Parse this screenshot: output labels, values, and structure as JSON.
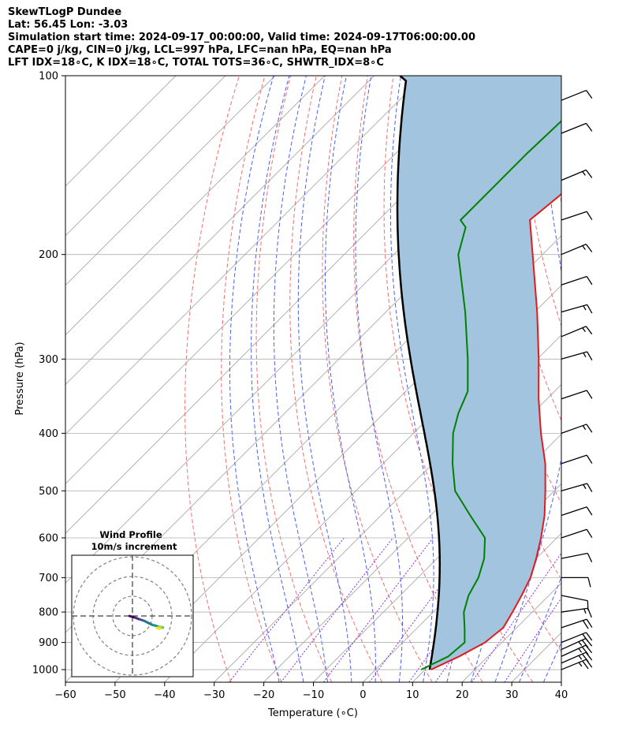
{
  "header": {
    "line1": "SkewTLogP Dundee",
    "line2": "Lat: 56.45   Lon: -3.03",
    "line3": "Simulation start time: 2024-09-17_00:00:00, Valid time: 2024-09-17T06:00:00.00",
    "line4": "CAPE=0 j/kg, CIN=0 j/kg, LCL=997 hPa, LFC=nan hPa, EQ=nan hPa",
    "line5": "LFT IDX=18∘C, K IDX=18∘C, TOTAL TOTS=36∘C, SHWTR_IDX=8∘C"
  },
  "colors": {
    "temperature": "#e41a1c",
    "dewpoint": "#008000",
    "parcel": "#000000",
    "cape_fill": "#a2c4de",
    "dry_adiabat": "#f07070",
    "moist_adiabat": "#4a5ff0",
    "mixing_ratio": "#8a2be2",
    "isotherm": "#a9a9a9"
  },
  "chart_data": [
    {
      "type": "line",
      "title": "",
      "xlabel": "Temperature (∘C)",
      "ylabel": "Pressure (hPa)",
      "xlim": [
        -60,
        40
      ],
      "ylim": [
        1050,
        100
      ],
      "y_scale": "log",
      "skew": true,
      "grid": true,
      "x_ticks": [
        -60,
        -50,
        -40,
        -30,
        -20,
        -10,
        0,
        10,
        20,
        30,
        40
      ],
      "y_ticks": [
        1000,
        900,
        800,
        700,
        600,
        500,
        400,
        300,
        200,
        100
      ],
      "series": [
        {
          "kind": "temperature",
          "points": [
            [
              1000,
              11.2
            ],
            [
              950,
              14.2
            ],
            [
              900,
              16.6
            ],
            [
              850,
              17.3
            ],
            [
              800,
              16.0
            ],
            [
              750,
              14.5
            ],
            [
              700,
              12.7
            ],
            [
              650,
              10.0
            ],
            [
              600,
              6.8
            ],
            [
              550,
              3.0
            ],
            [
              500,
              -1.8
            ],
            [
              450,
              -7.3
            ],
            [
              400,
              -14.3
            ],
            [
              350,
              -21.7
            ],
            [
              300,
              -29.7
            ],
            [
              250,
              -39.5
            ],
            [
              200,
              -52.0
            ],
            [
              175,
              -59.5
            ],
            [
              160,
              -58.5
            ],
            [
              150,
              -58.0
            ],
            [
              140,
              -59.5
            ],
            [
              125,
              -62.0
            ],
            [
              112,
              -65.0
            ],
            [
              100,
              -70.0
            ]
          ]
        },
        {
          "kind": "dewpoint",
          "points": [
            [
              1000,
              9.2
            ],
            [
              950,
              12.0
            ],
            [
              900,
              12.5
            ],
            [
              850,
              9.5
            ],
            [
              800,
              6.2
            ],
            [
              750,
              3.8
            ],
            [
              700,
              2.2
            ],
            [
              650,
              -0.5
            ],
            [
              600,
              -4.5
            ],
            [
              550,
              -12.0
            ],
            [
              500,
              -20.0
            ],
            [
              450,
              -26.0
            ],
            [
              400,
              -32.0
            ],
            [
              370,
              -35.0
            ],
            [
              340,
              -37.5
            ],
            [
              300,
              -44.0
            ],
            [
              250,
              -54.0
            ],
            [
              200,
              -67.0
            ],
            [
              180,
              -71.0
            ],
            [
              175,
              -73.5
            ],
            [
              150,
              -73.5
            ],
            [
              135,
              -73.5
            ],
            [
              115,
              -73.0
            ],
            [
              105,
              -74.5
            ],
            [
              100,
              -77.5
            ]
          ]
        }
      ],
      "parcel_profile": {
        "start": [
          1000,
          11.0
        ],
        "lcl_hpa": 997
      },
      "wind_barbs": [
        {
          "p": 1000,
          "u": -11.0,
          "v": -4.5
        },
        {
          "p": 975,
          "u": -11.5,
          "v": -5.0
        },
        {
          "p": 950,
          "u": -12.0,
          "v": -5.5
        },
        {
          "p": 925,
          "u": -11.0,
          "v": -5.0
        },
        {
          "p": 900,
          "u": -10.0,
          "v": -4.0
        },
        {
          "p": 850,
          "u": -9.0,
          "v": -3.0
        },
        {
          "p": 800,
          "u": -7.0,
          "v": -1.0
        },
        {
          "p": 750,
          "u": -5.0,
          "v": 1.0
        },
        {
          "p": 700,
          "u": -5.0,
          "v": 0.0
        },
        {
          "p": 650,
          "u": -5.0,
          "v": -1.0
        },
        {
          "p": 600,
          "u": -6.0,
          "v": -2.0
        },
        {
          "p": 550,
          "u": -6.0,
          "v": -2.0
        },
        {
          "p": 500,
          "u": -7.0,
          "v": -2.0
        },
        {
          "p": 450,
          "u": -6.0,
          "v": -2.0
        },
        {
          "p": 400,
          "u": -7.0,
          "v": -2.5
        },
        {
          "p": 350,
          "u": -6.0,
          "v": -2.0
        },
        {
          "p": 300,
          "u": -7.0,
          "v": -2.0
        },
        {
          "p": 275,
          "u": -6.0,
          "v": -2.5
        },
        {
          "p": 250,
          "u": -7.0,
          "v": -2.0
        },
        {
          "p": 225,
          "u": -6.0,
          "v": -2.0
        },
        {
          "p": 200,
          "u": -6.0,
          "v": -2.5
        },
        {
          "p": 175,
          "u": -6.0,
          "v": -2.0
        },
        {
          "p": 150,
          "u": -6.0,
          "v": -2.5
        },
        {
          "p": 125,
          "u": -5.0,
          "v": -2.0
        },
        {
          "p": 110,
          "u": -5.0,
          "v": -2.0
        }
      ]
    },
    {
      "type": "hodograph",
      "title": "Wind Profile",
      "subtitle": "10m/s increment",
      "ring_step_ms": 10,
      "rings": 3,
      "points": [
        [
          -1.5,
          0.0
        ],
        [
          0.5,
          -0.6
        ],
        [
          1.5,
          -0.9
        ],
        [
          3.0,
          -1.5
        ],
        [
          4.0,
          -1.8
        ],
        [
          6.0,
          -2.5
        ],
        [
          8.0,
          -3.5
        ],
        [
          10.0,
          -4.5
        ],
        [
          12.0,
          -5.0
        ],
        [
          13.5,
          -5.5
        ],
        [
          15.0,
          -6.0
        ],
        [
          15.5,
          -5.8
        ],
        [
          14.5,
          -5.5
        ],
        [
          13.0,
          -5.8
        ],
        [
          12.5,
          -6.2
        ],
        [
          14.0,
          -6.5
        ]
      ]
    }
  ]
}
